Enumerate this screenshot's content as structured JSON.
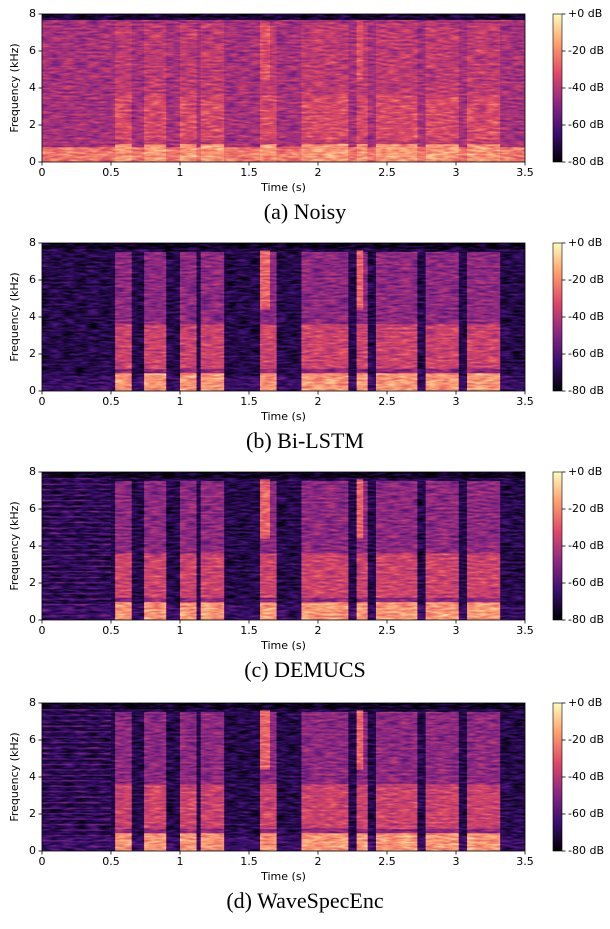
{
  "chart_data": [
    {
      "type": "spectrogram",
      "title": "(a) Noisy",
      "xlabel": "Time (s)",
      "ylabel": "Frequency (kHz)",
      "xlim": [
        0,
        3.5
      ],
      "ylim": [
        0,
        8
      ],
      "xticks": [
        0,
        0.5,
        1,
        1.5,
        2,
        2.5,
        3,
        3.5
      ],
      "yticks": [
        0,
        2,
        4,
        6,
        8
      ],
      "colormap": "magma",
      "clim": [
        -80,
        0
      ],
      "cticks": [
        {
          "value": 0,
          "label": "+0 dB"
        },
        {
          "value": -20,
          "label": "-20 dB"
        },
        {
          "value": -40,
          "label": "-40 dB"
        },
        {
          "value": -60,
          "label": "-60 dB"
        },
        {
          "value": -80,
          "label": "-80 dB"
        }
      ]
    },
    {
      "type": "spectrogram",
      "title": "(b) Bi-LSTM",
      "xlabel": "Time (s)",
      "ylabel": "Frequency (kHz)",
      "xlim": [
        0,
        3.5
      ],
      "ylim": [
        0,
        8
      ],
      "xticks": [
        0,
        0.5,
        1,
        1.5,
        2,
        2.5,
        3,
        3.5
      ],
      "yticks": [
        0,
        2,
        4,
        6,
        8
      ],
      "colormap": "magma",
      "clim": [
        -80,
        0
      ],
      "cticks": [
        {
          "value": 0,
          "label": "+0 dB"
        },
        {
          "value": -20,
          "label": "-20 dB"
        },
        {
          "value": -40,
          "label": "-40 dB"
        },
        {
          "value": -60,
          "label": "-60 dB"
        },
        {
          "value": -80,
          "label": "-80 dB"
        }
      ]
    },
    {
      "type": "spectrogram",
      "title": "(c) DEMUCS",
      "xlabel": "Time (s)",
      "ylabel": "Frequency (kHz)",
      "xlim": [
        0,
        3.5
      ],
      "ylim": [
        0,
        8
      ],
      "xticks": [
        0,
        0.5,
        1,
        1.5,
        2,
        2.5,
        3,
        3.5
      ],
      "yticks": [
        0,
        2,
        4,
        6,
        8
      ],
      "colormap": "magma",
      "clim": [
        -80,
        0
      ],
      "cticks": [
        {
          "value": 0,
          "label": "+0 dB"
        },
        {
          "value": -20,
          "label": "-20 dB"
        },
        {
          "value": -40,
          "label": "-40 dB"
        },
        {
          "value": -60,
          "label": "-60 dB"
        },
        {
          "value": -80,
          "label": "-80 dB"
        }
      ]
    },
    {
      "type": "spectrogram",
      "title": "(d) WaveSpecEnc",
      "xlabel": "Time (s)",
      "ylabel": "Frequency (kHz)",
      "xlim": [
        0,
        3.5
      ],
      "ylim": [
        0,
        8
      ],
      "xticks": [
        0,
        0.5,
        1,
        1.5,
        2,
        2.5,
        3,
        3.5
      ],
      "yticks": [
        0,
        2,
        4,
        6,
        8
      ],
      "colormap": "magma",
      "clim": [
        -80,
        0
      ],
      "cticks": [
        {
          "value": 0,
          "label": "+0 dB"
        },
        {
          "value": -20,
          "label": "-20 dB"
        },
        {
          "value": -40,
          "label": "-40 dB"
        },
        {
          "value": -60,
          "label": "-60 dB"
        },
        {
          "value": -80,
          "label": "-80 dB"
        }
      ]
    }
  ]
}
